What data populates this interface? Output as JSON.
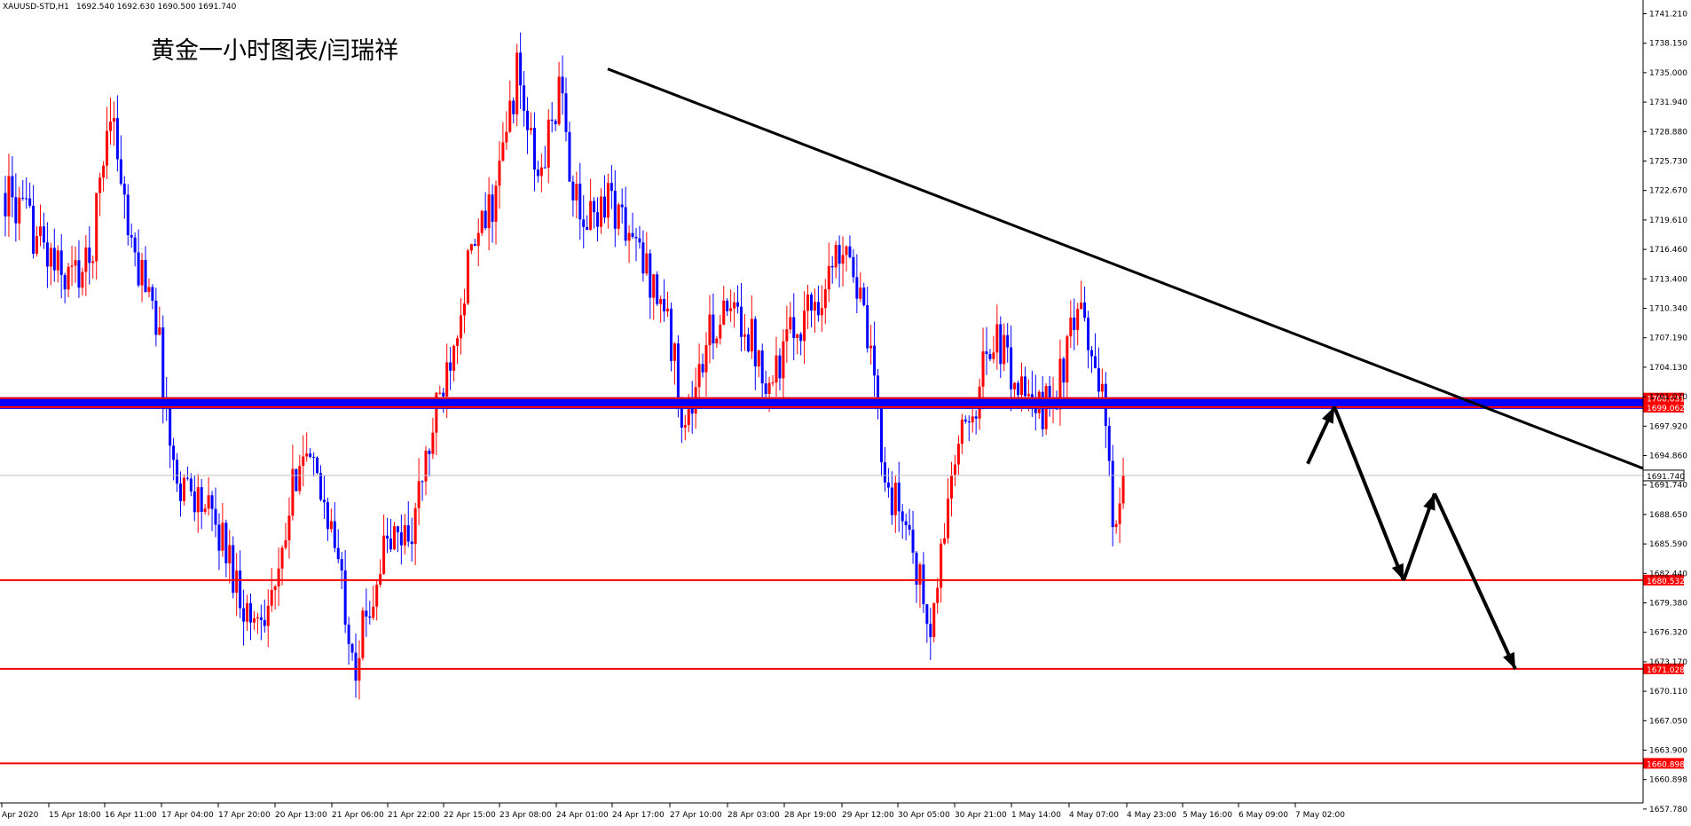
{
  "header": {
    "symbol_info": "XAUUSD-STD,H1",
    "ohlc": "1692.540 1692.630 1690.500 1691.740"
  },
  "annotation": {
    "title": "黄金一小时图表/闫瑞祥"
  },
  "colors": {
    "bull": "#ff0000",
    "bear": "#0000ff",
    "trendline": "#000000",
    "level": "#ff0000",
    "zone": "#0000ff",
    "price_tag_bg": "#ff0000",
    "current_tag_bg": "#ffffff"
  },
  "chart_data": {
    "type": "candlestick",
    "title": "黄金一小时图表/闫瑞祥",
    "ylim": [
      1657.78,
      1742.5
    ],
    "y_ticks": [
      "1741.210",
      "1738.150",
      "1735.000",
      "1731.940",
      "1728.880",
      "1725.730",
      "1722.670",
      "1719.610",
      "1716.460",
      "1713.400",
      "1710.340",
      "1707.190",
      "1704.130",
      "1701.070",
      "1697.920",
      "1694.860",
      "1691.740",
      "1688.650",
      "1685.590",
      "1682.440",
      "1679.380",
      "1676.320",
      "1673.170",
      "1670.110",
      "1667.050",
      "1663.900",
      "1660.898",
      "1657.780"
    ],
    "x_ticks": [
      "Apr 2020",
      "15 Apr 18:00",
      "16 Apr 11:00",
      "17 Apr 04:00",
      "17 Apr 20:00",
      "20 Apr 13:00",
      "21 Apr 06:00",
      "21 Apr 22:00",
      "22 Apr 15:00",
      "23 Apr 08:00",
      "24 Apr 01:00",
      "24 Apr 17:00",
      "27 Apr 10:00",
      "28 Apr 03:00",
      "28 Apr 19:00",
      "29 Apr 12:00",
      "30 Apr 05:00",
      "30 Apr 21:00",
      "1 May 14:00",
      "4 May 07:00",
      "4 May 23:00",
      "5 May 16:00",
      "6 May 09:00",
      "7 May 02:00"
    ],
    "current_price": "1691.740",
    "horizontal_levels": [
      {
        "label": "1700.031",
        "value": 1700.031
      },
      {
        "label": "1699.062",
        "value": 1699.062
      },
      {
        "label": "1680.532",
        "value": 1680.532
      },
      {
        "label": "1671.028",
        "value": 1671.028
      },
      {
        "label": "1660.898",
        "value": 1660.898
      }
    ],
    "resistance_zone": [
      1699.062,
      1700.031
    ],
    "trendline": [
      {
        "x": "24 Apr 01:00",
        "y": 1735.3
      },
      {
        "x": "7 May 17:00",
        "y": 1692.5
      }
    ],
    "projection_path": [
      {
        "x": "7 May 02:00",
        "y": 1693.0
      },
      {
        "x": "7 May 03:00",
        "y": 1699.1
      },
      {
        "x": "7 May 17:00",
        "y": 1680.5
      },
      {
        "x": "7 May 22:00",
        "y": 1689.8
      },
      {
        "x": "8 May 10:00",
        "y": 1671.0
      }
    ],
    "keypoints": [
      {
        "x": 0,
        "y": 1722
      },
      {
        "x": 8,
        "y": 1718
      },
      {
        "x": 16,
        "y": 1713
      },
      {
        "x": 24,
        "y": 1714
      },
      {
        "x": 30,
        "y": 1732
      },
      {
        "x": 36,
        "y": 1715
      },
      {
        "x": 42,
        "y": 1712
      },
      {
        "x": 48,
        "y": 1692
      },
      {
        "x": 54,
        "y": 1690
      },
      {
        "x": 62,
        "y": 1685
      },
      {
        "x": 70,
        "y": 1676
      },
      {
        "x": 78,
        "y": 1680
      },
      {
        "x": 84,
        "y": 1695
      },
      {
        "x": 92,
        "y": 1688
      },
      {
        "x": 100,
        "y": 1672
      },
      {
        "x": 108,
        "y": 1684
      },
      {
        "x": 116,
        "y": 1686
      },
      {
        "x": 124,
        "y": 1700
      },
      {
        "x": 132,
        "y": 1714
      },
      {
        "x": 140,
        "y": 1722
      },
      {
        "x": 146,
        "y": 1735
      },
      {
        "x": 152,
        "y": 1723
      },
      {
        "x": 158,
        "y": 1733
      },
      {
        "x": 164,
        "y": 1718
      },
      {
        "x": 172,
        "y": 1722
      },
      {
        "x": 180,
        "y": 1716
      },
      {
        "x": 188,
        "y": 1710
      },
      {
        "x": 194,
        "y": 1697
      },
      {
        "x": 202,
        "y": 1708
      },
      {
        "x": 210,
        "y": 1709
      },
      {
        "x": 218,
        "y": 1702
      },
      {
        "x": 226,
        "y": 1708
      },
      {
        "x": 234,
        "y": 1712
      },
      {
        "x": 240,
        "y": 1718
      },
      {
        "x": 246,
        "y": 1706
      },
      {
        "x": 252,
        "y": 1690
      },
      {
        "x": 258,
        "y": 1686
      },
      {
        "x": 264,
        "y": 1674
      },
      {
        "x": 270,
        "y": 1692
      },
      {
        "x": 276,
        "y": 1699
      },
      {
        "x": 282,
        "y": 1707
      },
      {
        "x": 288,
        "y": 1702
      },
      {
        "x": 294,
        "y": 1698
      },
      {
        "x": 300,
        "y": 1701
      },
      {
        "x": 306,
        "y": 1709
      },
      {
        "x": 312,
        "y": 1703
      },
      {
        "x": 316,
        "y": 1688
      },
      {
        "x": 320,
        "y": 1691.74
      }
    ]
  }
}
